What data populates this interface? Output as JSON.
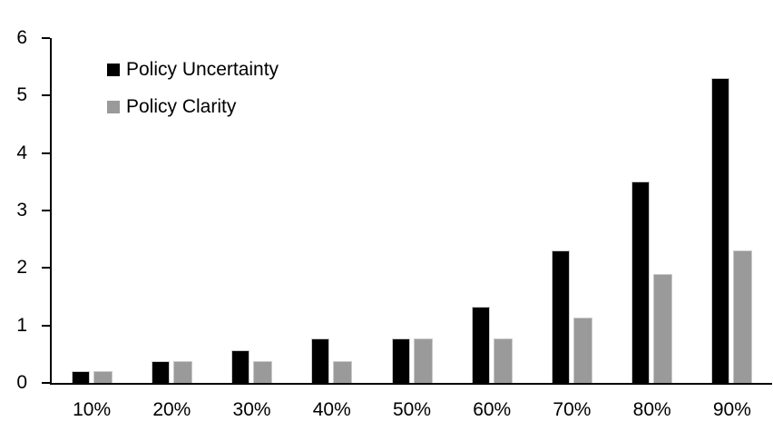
{
  "chart_data": {
    "type": "bar",
    "title": "",
    "xlabel": "",
    "ylabel": "",
    "categories": [
      "10%",
      "20%",
      "30%",
      "40%",
      "50%",
      "60%",
      "70%",
      "80%",
      "90%"
    ],
    "series": [
      {
        "name": "Policy Uncertainty",
        "color": "#000000",
        "values": [
          0.2,
          0.38,
          0.57,
          0.77,
          0.78,
          1.33,
          2.3,
          3.5,
          5.3
        ]
      },
      {
        "name": "Policy Clarity",
        "color": "#9a9a9a",
        "values": [
          0.2,
          0.38,
          0.38,
          0.38,
          0.77,
          0.77,
          1.14,
          1.9,
          2.3
        ]
      }
    ],
    "ylim": [
      0,
      6
    ],
    "yticks": [
      0,
      1,
      2,
      3,
      4,
      5,
      6
    ],
    "grid": false,
    "legend_position": "top-left",
    "axis_color": "#000000",
    "background_color": "#ffffff"
  }
}
